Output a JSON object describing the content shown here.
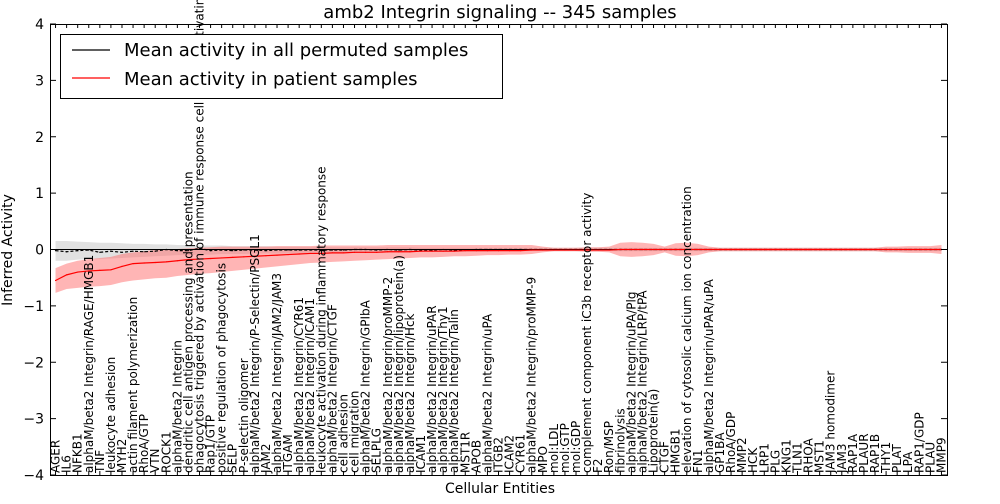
{
  "chart_data": {
    "type": "line",
    "title": "amb2 Integrin signaling -- 345 samples",
    "xlabel": "Cellular Entities",
    "ylabel": "Inferred Activity",
    "ylim": [
      -4,
      4
    ],
    "yticks": [
      -4,
      -3,
      -2,
      -1,
      0,
      1,
      2,
      3,
      4
    ],
    "legend_position": "top-left",
    "grid": false,
    "categories": [
      "AGER",
      "IL6",
      "NFKB1",
      "alphaM/beta2 Integrin/RAGE/HMGB1",
      "TNF",
      "leukocyte adhesion",
      "MYH2",
      "actin filament polymerization",
      "RhoA/GTP",
      "VTN",
      "ROCK1",
      "alphaM/beta2 Integrin",
      "dendritic cell antigen processing and presentation",
      "phagocytosis triggered by activation of immune response cell surface activating receptor",
      "Rap1/GTP",
      "positive regulation of phagocytosis",
      "SELP",
      "P-selectin oligomer",
      "alphaM/beta2 Integrin/P-Selectin/PSGL1",
      "JAM2",
      "alphaM/beta2 Integrin/JAM2/JAM3",
      "ITGAM",
      "alphaM/beta2 Integrin/CYR61",
      "alphaM/beta2 Integrin/ICAM1",
      "leukocyte activation during inflammatory response",
      "alphaM/beta2 Integrin/CTGF",
      "cell adhesion",
      "cell migration",
      "alphaM/beta2 Integrin/GPIbA",
      "SELPLG",
      "alphaM/beta2 Integrin/proMMP-2",
      "alphaM/beta2 Integrin/lipoprotein(a)",
      "alphaM/beta2 Integrin/Hck",
      "ICAM1",
      "alphaM/beta2 Integrin/uPAR",
      "alphaM/beta2 Integrin/Thy1",
      "alphaM/beta2 Integrin/Talin",
      "MST1R",
      "APOB",
      "alphaM/beta2 Integrin/uPA",
      "ITGB2",
      "ICAM2",
      "CYR61",
      "alphaM/beta2 Integrin/proMMP-9",
      "MPO",
      "mol:LDL",
      "mol:GTP",
      "mol:GDP",
      "complement component iC3b receptor activity",
      "F2",
      "Ron/MSP",
      "fibrinolysis",
      "alphaM/beta2 Integrin/uPA/Plg",
      "alphaM/beta2 Integrin/LRP/tPA",
      "Lipoprotein(a)",
      "CTGF",
      "HMGB1",
      "elevation of cytosolic calcium ion concentration",
      "FN1",
      "alphaM/beta2 Integrin/uPAR/uPA",
      "GP1BA",
      "RhoA/GDP",
      "MMP2",
      "HCK",
      "LRP1",
      "PLG",
      "KNG1",
      "TLN1",
      "RHOA",
      "MST1",
      "JAM3 homodimer",
      "JAM3",
      "RAP1A",
      "PLAUR",
      "RAP1B",
      "THY1",
      "PLAT",
      "LPA",
      "RAP1/GDP",
      "PLAU",
      "MMP9"
    ],
    "series": [
      {
        "name": "Mean activity in all permuted samples",
        "color": "#000000",
        "values": [
          -0.02,
          -0.04,
          -0.02,
          -0.01,
          -0.05,
          -0.03,
          -0.05,
          -0.03,
          -0.04,
          -0.03,
          0.0,
          -0.02,
          -0.02,
          0.02,
          -0.02,
          -0.01,
          -0.02,
          -0.01,
          -0.01,
          -0.02,
          -0.01,
          -0.01,
          -0.01,
          -0.01,
          -0.01,
          -0.01,
          -0.01,
          0.0,
          0.0,
          -0.01,
          0.0,
          -0.01,
          0.0,
          -0.01,
          -0.01,
          0.0,
          -0.01,
          -0.01,
          0.0,
          0.0,
          0.0,
          0.0,
          0.0,
          0.0,
          0.0,
          0.0,
          0.0,
          0.0,
          0.0,
          0.0,
          0.0,
          0.0,
          0.0,
          0.0,
          0.0,
          0.0,
          0.0,
          0.0,
          0.0,
          0.0,
          0.0,
          0.0,
          0.0,
          0.0,
          0.0,
          0.0,
          0.0,
          0.0,
          0.0,
          0.0,
          0.0,
          0.0,
          0.0,
          0.0,
          0.0,
          0.0,
          0.0,
          0.0,
          0.0,
          0.0,
          0.0
        ],
        "band_lower": [
          -0.2,
          -0.2,
          -0.18,
          -0.17,
          -0.17,
          -0.16,
          -0.15,
          -0.14,
          -0.13,
          -0.12,
          -0.11,
          -0.1,
          -0.1,
          -0.09,
          -0.09,
          -0.08,
          -0.08,
          -0.08,
          -0.07,
          -0.07,
          -0.07,
          -0.07,
          -0.06,
          -0.06,
          -0.06,
          -0.06,
          -0.05,
          -0.05,
          -0.05,
          -0.05,
          -0.05,
          -0.05,
          -0.04,
          -0.04,
          -0.04,
          -0.04,
          -0.04,
          -0.04,
          -0.04,
          -0.04,
          -0.03,
          -0.03,
          -0.03,
          -0.03,
          -0.03,
          -0.03,
          -0.03,
          -0.03,
          -0.03,
          -0.03,
          -0.03,
          -0.03,
          -0.03,
          -0.03,
          -0.03,
          -0.03,
          -0.03,
          -0.03,
          -0.03,
          -0.03,
          -0.03,
          -0.03,
          -0.03,
          -0.03,
          -0.03,
          -0.03,
          -0.03,
          -0.03,
          -0.03,
          -0.03,
          -0.03,
          -0.03,
          -0.03,
          -0.03,
          -0.03,
          -0.03,
          -0.03,
          -0.03,
          -0.03,
          -0.03,
          -0.03
        ],
        "band_upper": [
          0.15,
          0.15,
          0.14,
          0.13,
          0.12,
          0.12,
          0.11,
          0.1,
          0.1,
          0.09,
          0.09,
          0.08,
          0.08,
          0.07,
          0.07,
          0.07,
          0.06,
          0.06,
          0.06,
          0.06,
          0.05,
          0.05,
          0.05,
          0.05,
          0.05,
          0.04,
          0.04,
          0.04,
          0.04,
          0.04,
          0.04,
          0.04,
          0.04,
          0.03,
          0.03,
          0.03,
          0.03,
          0.03,
          0.03,
          0.03,
          0.03,
          0.03,
          0.03,
          0.03,
          0.03,
          0.03,
          0.03,
          0.03,
          0.03,
          0.03,
          0.03,
          0.03,
          0.03,
          0.03,
          0.03,
          0.03,
          0.03,
          0.03,
          0.03,
          0.03,
          0.03,
          0.03,
          0.03,
          0.03,
          0.03,
          0.03,
          0.03,
          0.03,
          0.03,
          0.03,
          0.03,
          0.03,
          0.03,
          0.03,
          0.03,
          0.03,
          0.03,
          0.03,
          0.03,
          0.03,
          0.03
        ]
      },
      {
        "name": "Mean activity in patient samples",
        "color": "#ff0000",
        "values": [
          -0.55,
          -0.45,
          -0.4,
          -0.38,
          -0.37,
          -0.36,
          -0.3,
          -0.25,
          -0.24,
          -0.23,
          -0.22,
          -0.2,
          -0.18,
          -0.17,
          -0.16,
          -0.15,
          -0.14,
          -0.13,
          -0.12,
          -0.11,
          -0.1,
          -0.09,
          -0.08,
          -0.07,
          -0.07,
          -0.06,
          -0.06,
          -0.05,
          -0.05,
          -0.05,
          -0.04,
          -0.04,
          -0.04,
          -0.03,
          -0.03,
          -0.03,
          -0.03,
          -0.02,
          -0.02,
          -0.02,
          -0.02,
          -0.02,
          -0.02,
          -0.01,
          -0.01,
          -0.01,
          -0.01,
          -0.01,
          -0.01,
          -0.01,
          -0.01,
          0.0,
          0.0,
          0.0,
          0.0,
          0.0,
          0.0,
          0.0,
          0.0,
          0.0,
          0.0,
          0.0,
          0.0,
          0.0,
          0.0,
          0.0,
          0.0,
          0.0,
          0.0,
          0.0,
          0.0,
          0.0,
          0.0,
          0.0,
          0.0,
          0.0,
          0.0,
          0.0,
          0.0,
          0.0,
          0.0
        ],
        "band_lower": [
          -0.77,
          -0.7,
          -0.68,
          -0.66,
          -0.65,
          -0.63,
          -0.58,
          -0.55,
          -0.53,
          -0.51,
          -0.5,
          -0.47,
          -0.45,
          -0.43,
          -0.42,
          -0.4,
          -0.38,
          -0.36,
          -0.34,
          -0.32,
          -0.3,
          -0.28,
          -0.26,
          -0.24,
          -0.23,
          -0.22,
          -0.21,
          -0.2,
          -0.19,
          -0.18,
          -0.17,
          -0.16,
          -0.15,
          -0.14,
          -0.14,
          -0.13,
          -0.12,
          -0.12,
          -0.11,
          -0.1,
          -0.1,
          -0.09,
          -0.09,
          -0.08,
          -0.05,
          -0.03,
          -0.03,
          -0.03,
          -0.04,
          -0.04,
          -0.05,
          -0.12,
          -0.13,
          -0.12,
          -0.1,
          -0.05,
          -0.11,
          -0.12,
          -0.1,
          -0.05,
          -0.03,
          -0.03,
          -0.03,
          -0.03,
          -0.03,
          -0.03,
          -0.03,
          -0.03,
          -0.03,
          -0.03,
          -0.03,
          -0.03,
          -0.03,
          -0.03,
          -0.03,
          -0.05,
          -0.05,
          -0.06,
          -0.06,
          -0.06,
          -0.08
        ],
        "band_upper": [
          -0.33,
          -0.25,
          -0.2,
          -0.17,
          -0.15,
          -0.13,
          -0.08,
          -0.05,
          -0.03,
          -0.01,
          0.0,
          0.01,
          0.02,
          0.03,
          0.04,
          0.05,
          0.05,
          0.05,
          0.05,
          0.05,
          0.06,
          0.06,
          0.06,
          0.06,
          0.07,
          0.07,
          0.07,
          0.07,
          0.07,
          0.07,
          0.08,
          0.08,
          0.08,
          0.08,
          0.08,
          0.08,
          0.08,
          0.08,
          0.08,
          0.08,
          0.08,
          0.08,
          0.08,
          0.08,
          0.05,
          0.03,
          0.03,
          0.03,
          0.04,
          0.04,
          0.05,
          0.12,
          0.13,
          0.12,
          0.1,
          0.05,
          0.11,
          0.12,
          0.1,
          0.05,
          0.03,
          0.03,
          0.03,
          0.03,
          0.03,
          0.03,
          0.03,
          0.03,
          0.03,
          0.03,
          0.03,
          0.03,
          0.03,
          0.03,
          0.03,
          0.05,
          0.05,
          0.06,
          0.06,
          0.06,
          0.08
        ]
      }
    ]
  }
}
